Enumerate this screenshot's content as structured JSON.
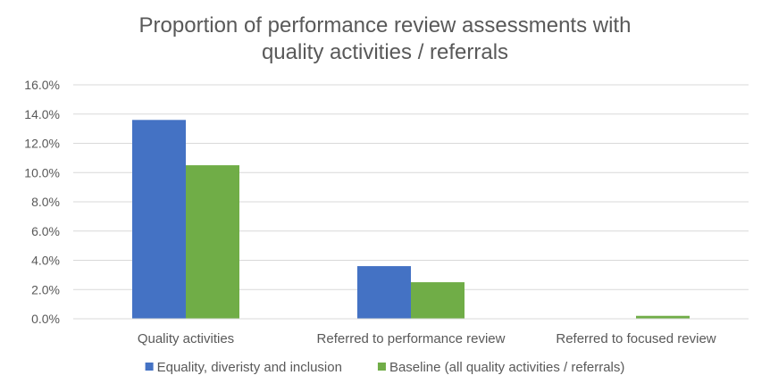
{
  "chart_data": {
    "type": "bar",
    "title_lines": [
      "Proportion of performance review assessments with",
      "quality activities / referrals"
    ],
    "categories": [
      "Quality activities",
      "Referred to performance review",
      "Referred to focused review"
    ],
    "series": [
      {
        "name": "Equality, diveristy and inclusion",
        "color": "#4472c4",
        "values": [
          13.6,
          3.6,
          0.0
        ]
      },
      {
        "name": "Baseline (all quality activities / referrals)",
        "color": "#70ad47",
        "values": [
          10.5,
          2.5,
          0.2
        ]
      }
    ],
    "y_ticks": [
      "0.0%",
      "2.0%",
      "4.0%",
      "6.0%",
      "8.0%",
      "10.0%",
      "12.0%",
      "14.0%",
      "16.0%"
    ],
    "ylim": [
      0,
      16
    ],
    "grid": true,
    "legend_position": "bottom"
  }
}
